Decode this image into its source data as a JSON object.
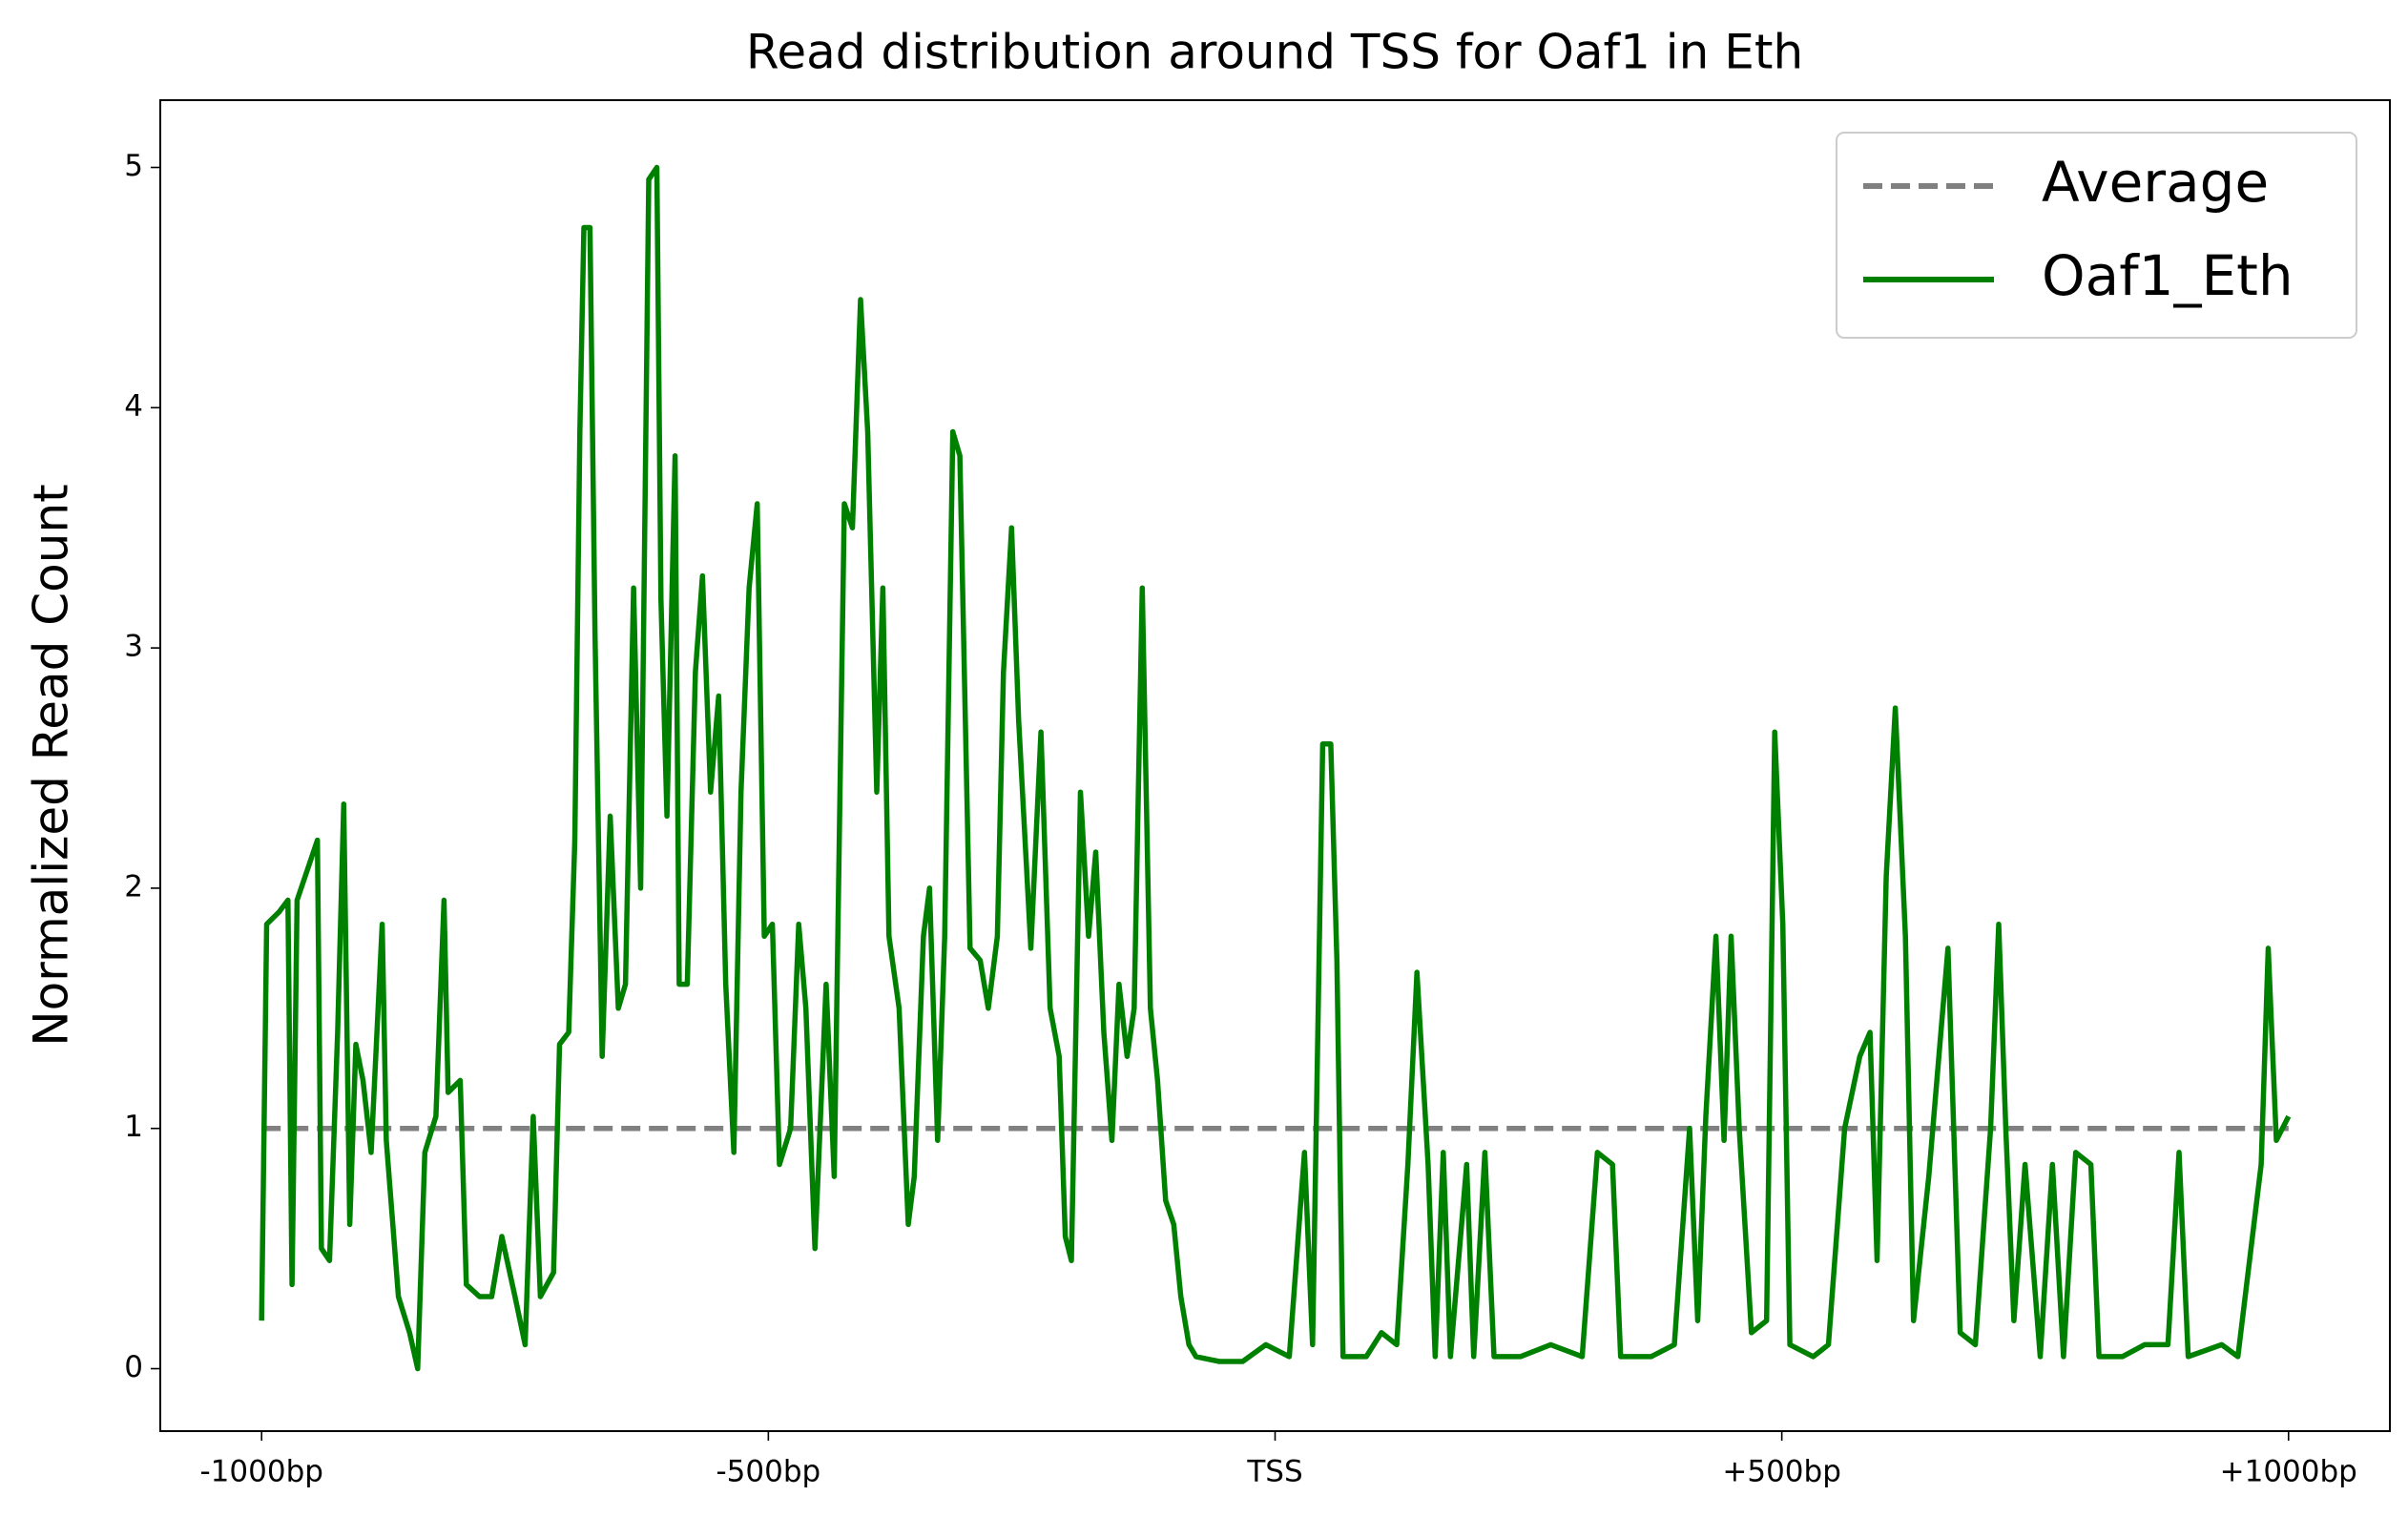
{
  "chart_data": {
    "type": "line",
    "title": "Read distribution around TSS for Oaf1 in Eth",
    "y_label": "Normalized Read Count",
    "xlim": [
      -1100,
      1100
    ],
    "ylim": [
      -0.26,
      5.28
    ],
    "xticks": [
      {
        "value": -1000,
        "label": "-1000bp"
      },
      {
        "value": -500,
        "label": "-500bp"
      },
      {
        "value": 0,
        "label": "TSS"
      },
      {
        "value": 500,
        "label": "+500bp"
      },
      {
        "value": 1000,
        "label": "+1000bp"
      }
    ],
    "yticks": [
      0,
      1,
      2,
      3,
      4,
      5
    ],
    "legend": "upper right",
    "series": [
      {
        "name": "Average",
        "color": "#808080",
        "dashed": true,
        "x": [
          -1000,
          1000
        ],
        "values": [
          1,
          1
        ]
      },
      {
        "name": "Oaf1_Eth",
        "color": "#008000",
        "dashed": false,
        "x": [
          -1000,
          -995,
          -983,
          -974,
          -970,
          -965,
          -953,
          -945,
          -941,
          -933,
          -925,
          -919,
          -913,
          -907,
          -900,
          -892,
          -881,
          -877,
          -865,
          -854,
          -846,
          -839,
          -828,
          -820,
          -816,
          -804,
          -798,
          -785,
          -773,
          -763,
          -750,
          -740,
          -732,
          -725,
          -712,
          -706,
          -697,
          -691,
          -686,
          -682,
          -676,
          -671,
          -664,
          -656,
          -648,
          -641,
          -633,
          -626,
          -618,
          -610,
          -606,
          -600,
          -592,
          -588,
          -580,
          -572,
          -565,
          -557,
          -549,
          -542,
          -534,
          -527,
          -519,
          -511,
          -504,
          -496,
          -489,
          -478,
          -470,
          -463,
          -454,
          -443,
          -435,
          -425,
          -417,
          -409,
          -402,
          -393,
          -387,
          -381,
          -371,
          -362,
          -356,
          -347,
          -341,
          -333,
          -326,
          -318,
          -311,
          -301,
          -291,
          -283,
          -274,
          -268,
          -260,
          -253,
          -241,
          -231,
          -222,
          -213,
          -207,
          -201,
          -192,
          -184,
          -177,
          -169,
          -161,
          -154,
          -146,
          -139,
          -131,
          -123,
          -116,
          -108,
          -100,
          -93,
          -85,
          -78,
          -55,
          -32,
          -9,
          14,
          29,
          37,
          47,
          55,
          61,
          67,
          90,
          105,
          120,
          131,
          140,
          151,
          158,
          166,
          173,
          189,
          196,
          207,
          216,
          242,
          272,
          303,
          318,
          333,
          341,
          371,
          394,
          409,
          417,
          425,
          435,
          443,
          450,
          458,
          470,
          485,
          493,
          501,
          508,
          531,
          546,
          562,
          577,
          587,
          594,
          603,
          612,
          622,
          630,
          645,
          664,
          676,
          691,
          706,
          714,
          721,
          729,
          740,
          755,
          767,
          778,
          790,
          805,
          813,
          836,
          858,
          881,
          892,
          901,
          934,
          950,
          973,
          980,
          988,
          1000
        ],
        "values": [
          0.2,
          1.85,
          1.9,
          1.95,
          0.35,
          1.95,
          2.1,
          2.2,
          0.5,
          0.45,
          1.4,
          2.35,
          0.6,
          1.35,
          1.2,
          0.9,
          1.85,
          0.95,
          0.3,
          0.15,
          0.0,
          0.9,
          1.05,
          1.95,
          1.15,
          1.2,
          0.35,
          0.3,
          0.3,
          0.55,
          0.3,
          0.1,
          1.05,
          0.3,
          0.4,
          1.35,
          1.4,
          2.2,
          3.9,
          4.75,
          4.75,
          3.05,
          1.3,
          2.3,
          1.5,
          1.6,
          3.25,
          2.0,
          4.95,
          5.0,
          3.2,
          2.3,
          3.8,
          1.6,
          1.6,
          2.9,
          3.3,
          2.4,
          2.8,
          1.6,
          0.9,
          2.4,
          3.25,
          3.6,
          1.8,
          1.85,
          0.85,
          1.0,
          1.85,
          1.5,
          0.5,
          1.6,
          0.8,
          3.6,
          3.5,
          4.45,
          3.9,
          2.4,
          3.25,
          1.8,
          1.5,
          0.6,
          0.8,
          1.8,
          2.0,
          0.95,
          1.8,
          3.9,
          3.8,
          1.75,
          1.7,
          1.5,
          1.8,
          2.9,
          3.5,
          2.7,
          1.75,
          2.65,
          1.5,
          1.3,
          0.55,
          0.45,
          2.4,
          1.8,
          2.15,
          1.4,
          0.95,
          1.6,
          1.3,
          1.5,
          3.25,
          1.5,
          1.2,
          0.7,
          0.6,
          0.3,
          0.1,
          0.05,
          0.03,
          0.03,
          0.1,
          0.05,
          0.9,
          0.1,
          2.6,
          2.6,
          1.7,
          0.05,
          0.05,
          0.15,
          0.1,
          0.85,
          1.65,
          0.85,
          0.05,
          0.9,
          0.05,
          0.85,
          0.05,
          0.9,
          0.05,
          0.05,
          0.1,
          0.05,
          0.9,
          0.85,
          0.05,
          0.05,
          0.1,
          1.0,
          0.2,
          1.05,
          1.8,
          0.95,
          1.8,
          1.0,
          0.15,
          0.2,
          2.65,
          1.85,
          0.1,
          0.05,
          0.1,
          1.0,
          1.3,
          1.4,
          0.45,
          2.05,
          2.75,
          1.8,
          0.2,
          0.8,
          1.75,
          0.15,
          0.1,
          1.0,
          1.85,
          1.0,
          0.2,
          0.85,
          0.05,
          0.85,
          0.05,
          0.9,
          0.85,
          0.05,
          0.05,
          0.1,
          0.1,
          0.9,
          0.05,
          0.1,
          0.05,
          0.85,
          1.75,
          0.95,
          1.05
        ]
      }
    ]
  }
}
